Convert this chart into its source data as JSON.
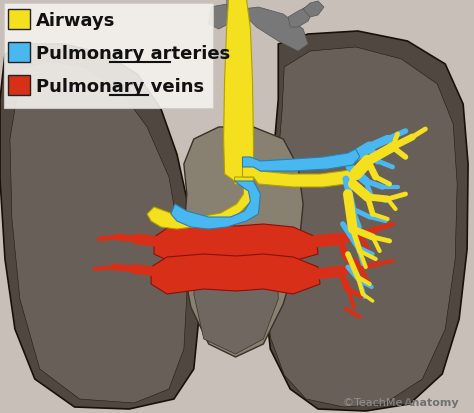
{
  "background_color": "#c8c0b8",
  "legend_items": [
    {
      "label": "Airways",
      "color": "#f5e020",
      "underline": false
    },
    {
      "label": "Pulmonary arteries",
      "color": "#4ab8f0",
      "underline": true,
      "underline_word": "arteries"
    },
    {
      "label": "Pulmonary veins",
      "color": "#d83018",
      "underline": true,
      "underline_word": "veins"
    }
  ],
  "watermark_left": "©",
  "watermark_text1": "TeachMe",
  "watermark_text2": "Anatomy",
  "lung_dark": "#504840",
  "lung_mid": "#686058",
  "lung_light": "#787870",
  "heart_color": "#908880",
  "vessel_gray": "#909090",
  "airway_color": "#f5e020",
  "artery_color": "#4ab8f0",
  "vein_color": "#d83018",
  "legend_box_edge": "#888888",
  "legend_text_color": "#111111",
  "legend_bg": "#f0ece8"
}
